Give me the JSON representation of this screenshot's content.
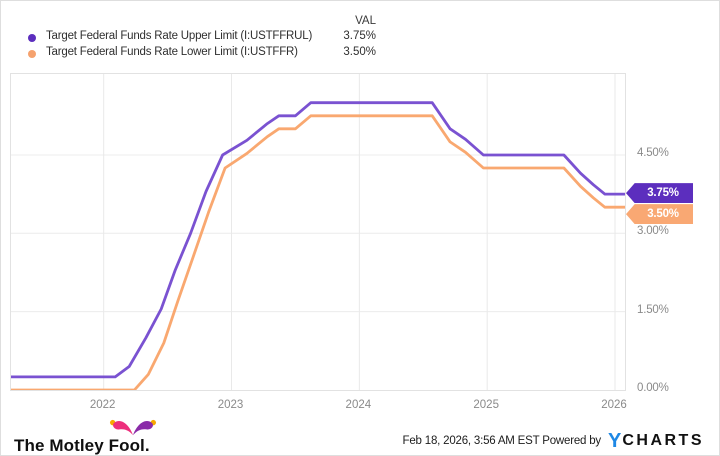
{
  "legend": {
    "value_header": "VAL",
    "items": [
      {
        "label": "Target Federal Funds Rate Upper Limit (I:USTFFRUL)",
        "value": "3.75%",
        "dot_color": "#5C2EBE"
      },
      {
        "label": "Target Federal Funds Rate Lower Limit (I:USTFFR)",
        "value": "3.50%",
        "dot_color": "#F5A26E"
      }
    ]
  },
  "chart_data": {
    "type": "line",
    "title": "",
    "xlabel": "",
    "ylabel": "",
    "grid": true,
    "legend_position": "top-left",
    "x_axis": {
      "range": [
        2021.275,
        2026.078
      ],
      "ticks": [
        {
          "label": "2022",
          "value": 2022
        },
        {
          "label": "2023",
          "value": 2023
        },
        {
          "label": "2024",
          "value": 2024
        },
        {
          "label": "2025",
          "value": 2025
        },
        {
          "label": "2026",
          "value": 2026
        }
      ]
    },
    "y_axis": {
      "range": [
        0,
        6.05
      ],
      "ticks": [
        {
          "label": "4.50%",
          "value": 4.5
        },
        {
          "label": "3.00%",
          "value": 3.0
        },
        {
          "label": "1.50%",
          "value": 1.5
        },
        {
          "label": "0.00%",
          "value": 0.0
        }
      ]
    },
    "series": [
      {
        "name": "Target Federal Funds Rate Upper Limit (I:USTFFRUL)",
        "color": "#7A52D1",
        "badge_label": "3.75%",
        "badge_color": "#5C2EBE",
        "points": [
          [
            2021.27,
            0.25
          ],
          [
            2022.09,
            0.25
          ],
          [
            2022.2,
            0.45
          ],
          [
            2022.33,
            1.0
          ],
          [
            2022.45,
            1.55
          ],
          [
            2022.56,
            2.3
          ],
          [
            2022.68,
            3.0
          ],
          [
            2022.8,
            3.8
          ],
          [
            2022.93,
            4.5
          ],
          [
            2023.12,
            4.78
          ],
          [
            2023.28,
            5.1
          ],
          [
            2023.37,
            5.25
          ],
          [
            2023.5,
            5.25
          ],
          [
            2023.62,
            5.5
          ],
          [
            2024.57,
            5.5
          ],
          [
            2024.71,
            5.0
          ],
          [
            2024.83,
            4.8
          ],
          [
            2024.97,
            4.5
          ],
          [
            2025.6,
            4.5
          ],
          [
            2025.73,
            4.15
          ],
          [
            2025.83,
            3.93
          ],
          [
            2025.92,
            3.75
          ],
          [
            2026.08,
            3.75
          ]
        ]
      },
      {
        "name": "Target Federal Funds Rate Lower Limit (I:USTFFR)",
        "color": "#F9A870",
        "badge_label": "3.50%",
        "badge_color": "#F9A873",
        "points": [
          [
            2021.27,
            0.0
          ],
          [
            2022.24,
            0.0
          ],
          [
            2022.35,
            0.3
          ],
          [
            2022.47,
            0.9
          ],
          [
            2022.58,
            1.7
          ],
          [
            2022.7,
            2.55
          ],
          [
            2022.82,
            3.4
          ],
          [
            2022.95,
            4.25
          ],
          [
            2023.12,
            4.53
          ],
          [
            2023.28,
            4.85
          ],
          [
            2023.37,
            5.0
          ],
          [
            2023.5,
            5.0
          ],
          [
            2023.62,
            5.25
          ],
          [
            2024.57,
            5.25
          ],
          [
            2024.71,
            4.75
          ],
          [
            2024.83,
            4.55
          ],
          [
            2024.97,
            4.25
          ],
          [
            2025.6,
            4.25
          ],
          [
            2025.73,
            3.9
          ],
          [
            2025.83,
            3.68
          ],
          [
            2025.92,
            3.5
          ],
          [
            2026.08,
            3.5
          ]
        ]
      }
    ]
  },
  "footer": {
    "brand_prefix": "The Motley ",
    "brand_suffix": "Fool.",
    "timestamp": "Feb 18, 2026, 3:56 AM EST",
    "powered_by": "Powered by",
    "ycharts_y": "Y",
    "ycharts_text": "CHARTS"
  },
  "colors": {
    "grid_horizontal": "#ECECEC",
    "grid_vertical": "#E9E9E9",
    "plot_border": "#E2E2E2",
    "axis_text": "#8A8A8A",
    "mf_pink": "#ED2F7C",
    "mf_purple": "#8A2BA8",
    "mf_bell": "#F7A800",
    "ycharts_blue": "#1E88E5"
  }
}
